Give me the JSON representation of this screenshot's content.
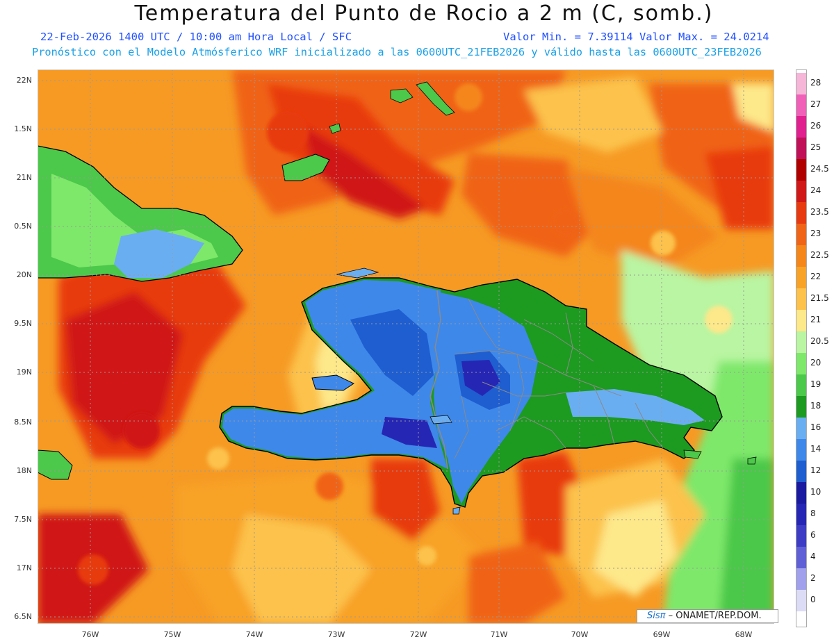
{
  "header": {
    "title": "Temperatura del Punto de Rocio a 2 m (C, somb.)",
    "line1": "22-Feb-2026     1400 UTC / 10:00 am Hora Local / SFC",
    "minmax": "Valor Min. = 7.39114  Valor Max. = 24.0214",
    "line2": "Pronóstico con el Modelo Atmósferico WRF inicializado a las 0600UTC_21FEB2026 y válido hasta las  0600UTC_23FEB2026"
  },
  "map": {
    "lat_labels": [
      "22N",
      "1.5N",
      "21N",
      "0.5N",
      "20N",
      "9.5N",
      "19N",
      "8.5N",
      "18N",
      "7.5N",
      "17N",
      "6.5N"
    ],
    "lon_labels": [
      "76W",
      "75W",
      "74W",
      "73W",
      "72W",
      "71W",
      "70W",
      "69W",
      "68W"
    ],
    "gridline_color": "#9a9a9a",
    "coast_color": "#000000",
    "province_border_color": "#8a8a8a"
  },
  "colorbar": {
    "labels": [
      "28",
      "27",
      "26",
      "25",
      "24.5",
      "24",
      "23.5",
      "23",
      "22.5",
      "22",
      "21.5",
      "21",
      "20.5",
      "20",
      "19",
      "18",
      "16",
      "14",
      "12",
      "10",
      "8",
      "6",
      "4",
      "2",
      "0"
    ],
    "colors": [
      "#f5b6d8",
      "#f060b8",
      "#e0208e",
      "#c01058",
      "#b00000",
      "#d01818",
      "#e83a10",
      "#f06418",
      "#f4861a",
      "#f8a228",
      "#fcc24c",
      "#fde88a",
      "#b9f5a2",
      "#7ee86a",
      "#4cc84a",
      "#1d9a20",
      "#6aaef2",
      "#3e88ea",
      "#1e5ed0",
      "#1a1aa0",
      "#2626b4",
      "#3c3cc4",
      "#6060d6",
      "#a0a0ec",
      "#dcdcf6"
    ]
  },
  "credit": {
    "sis": "Sisπ",
    "org": "– ONAMET/REP.DOM."
  }
}
